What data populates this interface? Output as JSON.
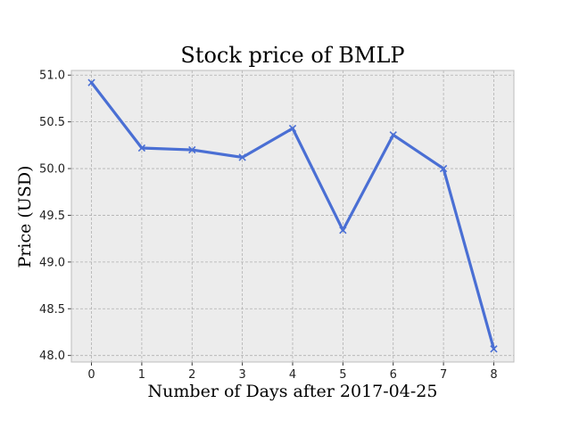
{
  "chart_data": {
    "type": "line",
    "title": "Stock price of BMLP",
    "xlabel": "Number of Days after 2017-04-25",
    "ylabel": "Price (USD)",
    "x": [
      0,
      1,
      2,
      3,
      4,
      5,
      6,
      7,
      8
    ],
    "x_ticks": [
      "0",
      "1",
      "2",
      "3",
      "4",
      "5",
      "6",
      "7",
      "8"
    ],
    "y_ticks": [
      "48.0",
      "48.5",
      "49.0",
      "49.5",
      "50.0",
      "50.5",
      "51.0"
    ],
    "xlim": [
      -0.4,
      8.4
    ],
    "ylim": [
      47.93,
      51.05
    ],
    "grid": true,
    "marker": "x",
    "colors": {
      "line": "#4a6fd4",
      "background": "#ececec",
      "grid": "#b0b0b0",
      "frame": "#bcbcbc"
    },
    "series": [
      {
        "values": [
          50.92,
          50.22,
          50.2,
          50.12,
          50.43,
          49.34,
          50.36,
          50.0,
          48.07
        ]
      }
    ]
  }
}
